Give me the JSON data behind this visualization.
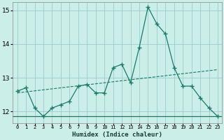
{
  "xlabel": "Humidex (Indice chaleur)",
  "x": [
    0,
    1,
    2,
    3,
    4,
    5,
    6,
    7,
    8,
    9,
    10,
    11,
    12,
    13,
    14,
    15,
    16,
    17,
    18,
    19,
    20,
    21,
    22,
    23
  ],
  "y_curve": [
    12.6,
    12.7,
    12.1,
    11.85,
    12.1,
    12.2,
    12.3,
    12.75,
    12.8,
    12.55,
    12.55,
    13.3,
    13.4,
    12.85,
    13.9,
    15.1,
    14.6,
    14.3,
    13.3,
    12.75,
    12.75,
    12.4,
    12.1,
    11.85
  ],
  "y_trend": [
    12.55,
    12.58,
    12.61,
    12.64,
    12.67,
    12.7,
    12.73,
    12.76,
    12.79,
    12.82,
    12.85,
    12.88,
    12.91,
    12.94,
    12.97,
    13.0,
    13.03,
    13.06,
    13.09,
    13.12,
    13.15,
    13.18,
    13.21,
    13.24
  ],
  "y_flat": 11.85,
  "line_color": "#1a7a6a",
  "bg_color": "#cceee8",
  "grid_color": "#99cccc",
  "ylim": [
    11.65,
    15.25
  ],
  "yticks": [
    12,
    13,
    14,
    15
  ],
  "xlim": [
    -0.5,
    23.5
  ]
}
